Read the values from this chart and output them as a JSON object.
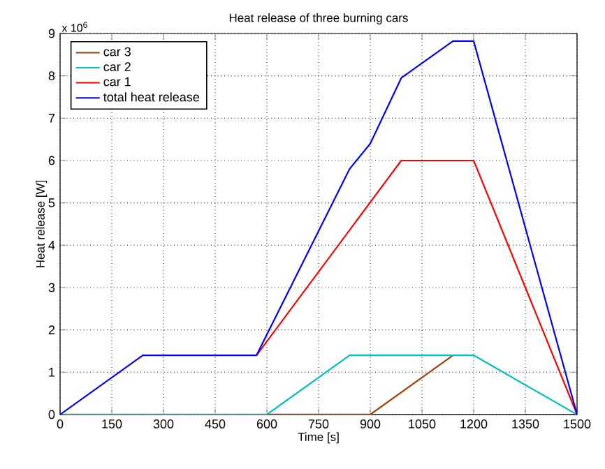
{
  "chart_data": {
    "type": "line",
    "title": "Heat release of three burning cars",
    "xlabel": "Time [s]",
    "ylabel": "Heat release [W]",
    "annotations": [
      "x 10$^{6}$"
    ],
    "xlim": [
      0,
      1500
    ],
    "xticks": [
      0,
      150,
      300,
      450,
      600,
      750,
      900,
      1050,
      1200,
      1350,
      1500
    ],
    "ylim": [
      0,
      9
    ],
    "yticks": [
      0,
      1,
      2,
      3,
      4,
      5,
      6,
      7,
      8,
      9
    ],
    "grid": true,
    "legend": "top left",
    "marker": "none",
    "line_style": "solid",
    "series": [
      {
        "name": "car 3",
        "color": "#a33d0a",
        "x": [
          600,
          900,
          1140
        ],
        "values": [
          0,
          0,
          1.4
        ]
      },
      {
        "name": "car 2",
        "color": "#00bfbf",
        "x": [
          0,
          600,
          840,
          1200,
          1500
        ],
        "values": [
          0,
          0,
          1.4,
          1.4,
          0
        ]
      },
      {
        "name": "car 1",
        "color": "#ff0000",
        "x": [
          570,
          990,
          1200,
          1500
        ],
        "values": [
          1.4,
          6,
          6,
          0
        ]
      },
      {
        "name": "total heat release",
        "color": "#0000ff",
        "x": [
          0,
          240,
          570,
          840,
          900,
          990,
          1140,
          1200,
          1500
        ],
        "values": [
          0,
          1.4,
          1.4,
          5.8,
          6.4,
          7.95,
          8.82,
          8.82,
          0
        ]
      }
    ]
  }
}
